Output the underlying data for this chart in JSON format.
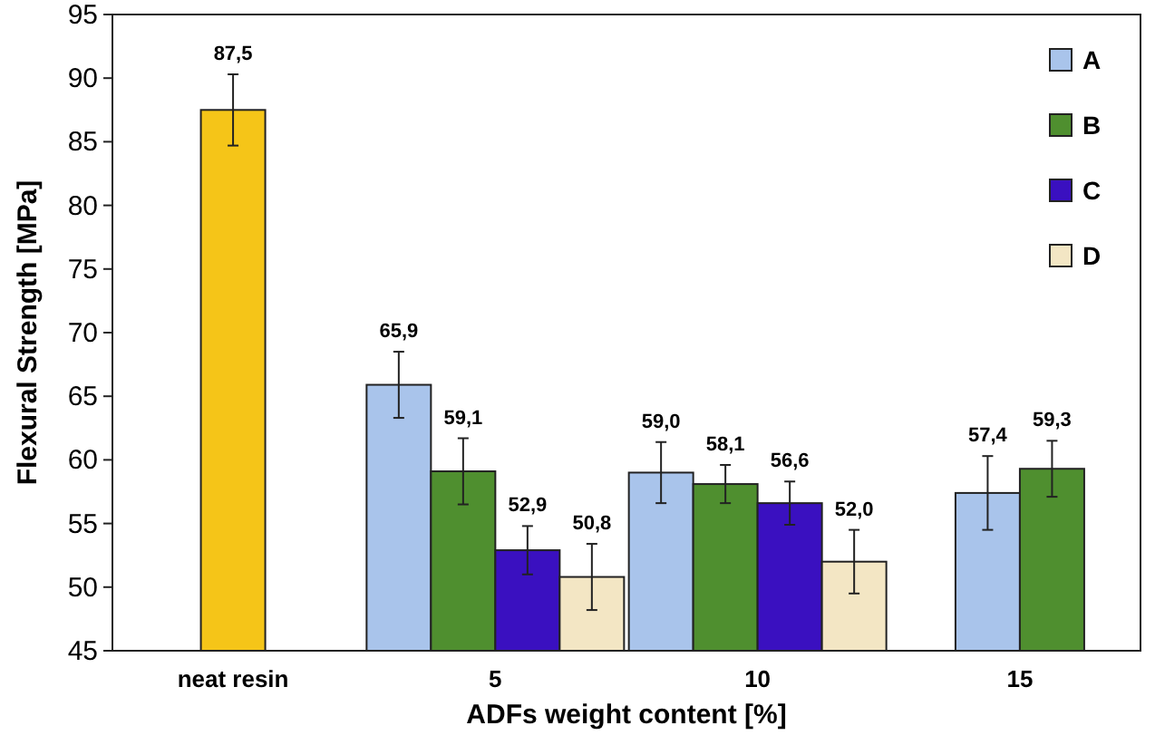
{
  "chart_data": {
    "type": "bar",
    "xlabel": "ADFs weight content [%]",
    "ylabel": "Flexural Strength [MPa]",
    "categories": [
      "neat resin",
      "5",
      "10",
      "15"
    ],
    "ylim": [
      45,
      95
    ],
    "yticks": [
      45,
      50,
      55,
      60,
      65,
      70,
      75,
      80,
      85,
      90,
      95
    ],
    "grid": false,
    "legend": "top right",
    "series": [
      {
        "color": "#f5c518",
        "values": [
          87.5,
          null,
          null,
          null
        ],
        "errors": [
          2.8,
          null,
          null,
          null
        ],
        "value_labels": [
          "87,5",
          null,
          null,
          null
        ]
      },
      {
        "name": "A",
        "color": "#a9c4eb",
        "values": [
          null,
          65.9,
          59.0,
          57.4
        ],
        "errors": [
          null,
          2.6,
          2.4,
          2.9
        ],
        "value_labels": [
          null,
          "65,9",
          "59,0",
          "57,4"
        ]
      },
      {
        "name": "B",
        "color": "#4f8f2f",
        "values": [
          null,
          59.1,
          58.1,
          59.3
        ],
        "errors": [
          null,
          2.6,
          1.5,
          2.2
        ],
        "value_labels": [
          null,
          "59,1",
          "58,1",
          "59,3"
        ]
      },
      {
        "name": "C",
        "color": "#3a10c0",
        "values": [
          null,
          52.9,
          56.6,
          null
        ],
        "errors": [
          null,
          1.9,
          1.7,
          null
        ],
        "value_labels": [
          null,
          "52,9",
          "56,6",
          null
        ]
      },
      {
        "name": "D",
        "color": "#f3e6c4",
        "values": [
          null,
          50.8,
          52.0,
          null
        ],
        "errors": [
          null,
          2.6,
          2.5,
          null
        ],
        "value_labels": [
          null,
          "50,8",
          "52,0",
          null
        ]
      }
    ]
  }
}
